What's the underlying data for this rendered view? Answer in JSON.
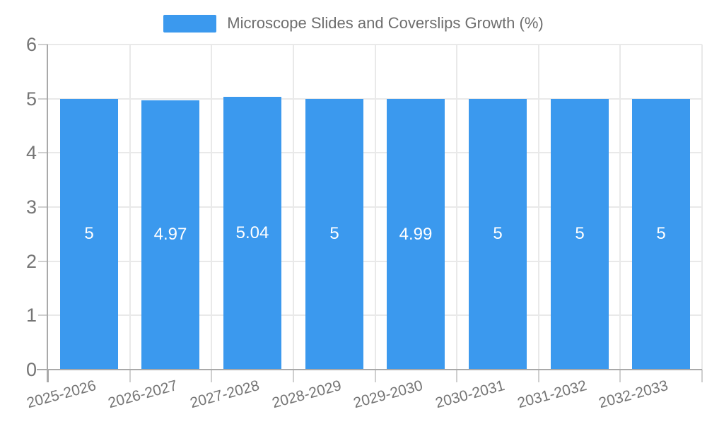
{
  "legend": {
    "label": "Microscope Slides and Coverslips Growth (%)"
  },
  "chart_data": {
    "type": "bar",
    "title": "Microscope Slides and Coverslips Growth (%)",
    "categories": [
      "2025-2026",
      "2026-2027",
      "2027-2028",
      "2028-2029",
      "2029-2030",
      "2030-2031",
      "2031-2032",
      "2032-2033"
    ],
    "values": [
      5,
      4.97,
      5.04,
      5,
      4.99,
      5,
      5,
      5
    ],
    "value_labels": [
      "5",
      "4.97",
      "5.04",
      "5",
      "4.99",
      "5",
      "5",
      "5"
    ],
    "xlabel": "",
    "ylabel": "",
    "ylim": [
      0,
      6
    ],
    "yticks": [
      0,
      1,
      2,
      3,
      4,
      5,
      6
    ],
    "ytick_labels": [
      "0",
      "1",
      "2",
      "3",
      "4",
      "5",
      "6"
    ],
    "grid": true,
    "legend_position": "top",
    "colors": {
      "bar": "#3b99ee",
      "grid": "#e9e9e9",
      "axis": "#a9a9a9",
      "tick": "#cfcfcf",
      "axis_label": "#757575",
      "title_text": "#6e6e6e",
      "value_label": "#ffffff",
      "background": "#ffffff"
    }
  }
}
